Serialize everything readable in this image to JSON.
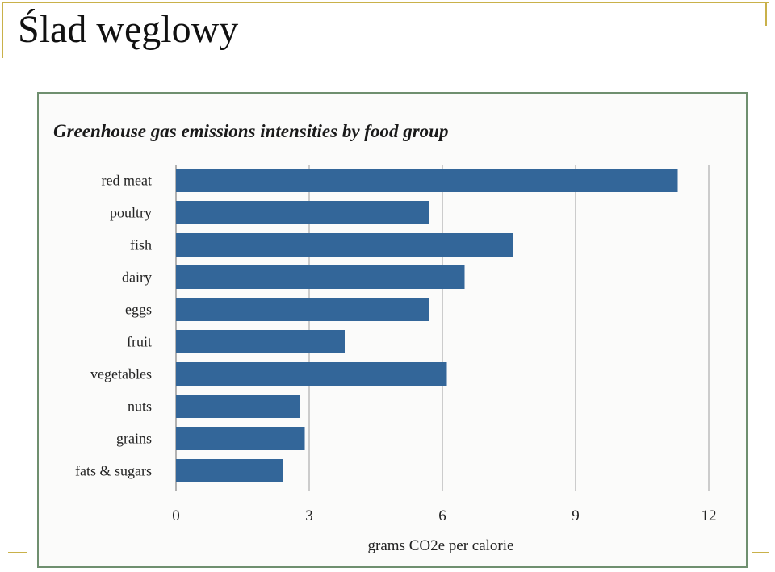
{
  "slide": {
    "title": "Ślad węglowy",
    "accent_color": "#c9b14a"
  },
  "chart_data": {
    "type": "bar",
    "orientation": "horizontal",
    "title": "Greenhouse gas emissions intensities by food group",
    "categories": [
      "red meat",
      "poultry",
      "fish",
      "dairy",
      "eggs",
      "fruit",
      "vegetables",
      "nuts",
      "grains",
      "fats & sugars"
    ],
    "values": [
      11.3,
      5.7,
      7.6,
      6.5,
      5.7,
      3.8,
      6.1,
      2.8,
      2.9,
      2.4
    ],
    "xlabel": "grams CO2e per calorie",
    "ylabel": "",
    "xlim": [
      0,
      12
    ],
    "xticks": [
      0,
      3,
      6,
      9,
      12
    ],
    "grid": "vertical",
    "legend": "none",
    "bar_color": "#336699"
  }
}
